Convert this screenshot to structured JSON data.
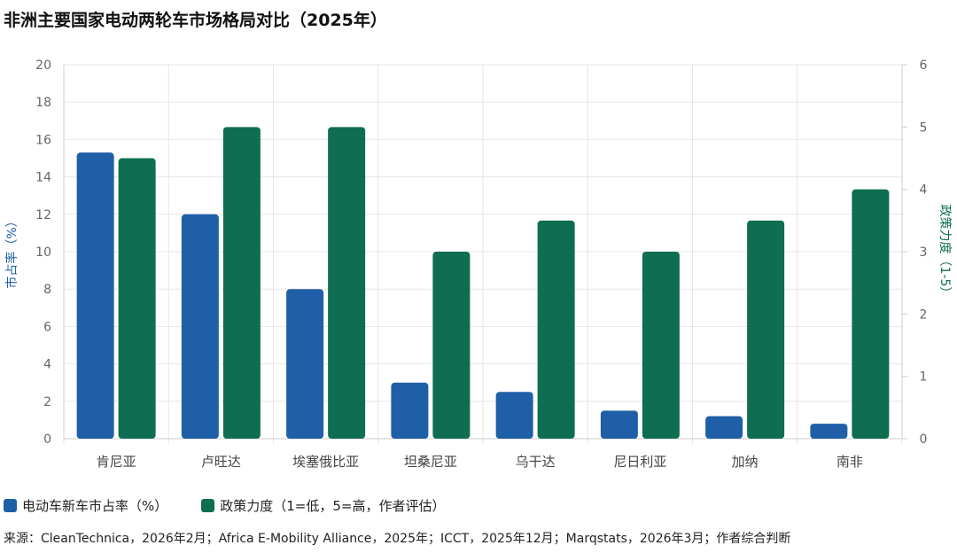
{
  "title": "非洲主要国家电动两轮车市场格局对比（2025年）",
  "chart_data": {
    "type": "bar",
    "title": "非洲主要国家电动两轮车市场格局对比（2025年）",
    "categories": [
      "肯尼亚",
      "卢旺达",
      "埃塞俄比亚",
      "坦桑尼亚",
      "乌干达",
      "尼日利亚",
      "加纳",
      "南非"
    ],
    "series": [
      {
        "name": "电动车新车市占率（%）",
        "axis": "left",
        "color": "#1f5fa8",
        "values": [
          15.3,
          12.0,
          8.0,
          3.0,
          2.5,
          1.5,
          1.2,
          0.8
        ]
      },
      {
        "name": "政策力度（1=低，5=高，作者评估）",
        "axis": "right",
        "color": "#0f6e52",
        "values": [
          4.5,
          5.0,
          5.0,
          3.0,
          3.5,
          3.0,
          3.5,
          4.0
        ]
      }
    ],
    "ylabel_left": "市占率（%）",
    "ylabel_right": "政策力度（1-5）",
    "ylim_left": [
      0,
      20
    ],
    "ylim_right": [
      0,
      6
    ],
    "yticks_left": [
      "0",
      "2",
      "4",
      "6",
      "8",
      "10",
      "12",
      "14",
      "16",
      "18",
      "20"
    ],
    "yticks_right": [
      "0",
      "1",
      "2",
      "3",
      "4",
      "5",
      "6"
    ],
    "grid": true,
    "legend_position": "bottom-left",
    "left_axis_color": "#1f5fa8",
    "right_axis_color": "#0f6e52"
  },
  "source": "来源：CleanTechnica，2026年2月；Africa E-Mobility Alliance，2025年；ICCT，2025年12月；Marqstats，2026年3月；作者综合判断"
}
